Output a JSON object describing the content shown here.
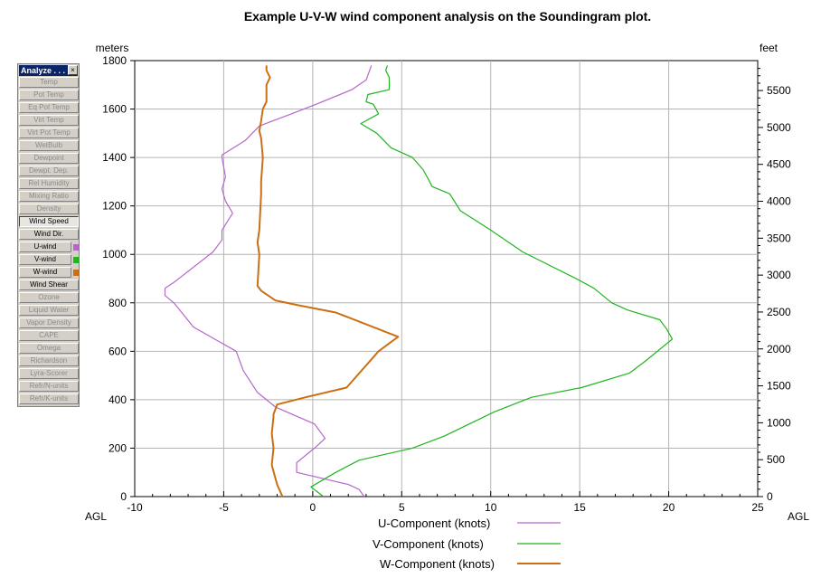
{
  "title": "Example U-V-W wind component analysis on the Soundingram plot.",
  "colors": {
    "u": "#b566cc",
    "v": "#1fb51f",
    "w": "#cc6f14",
    "grid": "#b4b4b4"
  },
  "palette": {
    "title": "Analyze . . .",
    "close": "×",
    "items": [
      {
        "label": "Temp",
        "state": "disabled"
      },
      {
        "label": "Pot Temp",
        "state": "disabled"
      },
      {
        "label": "Eq Pot Temp",
        "state": "disabled"
      },
      {
        "label": "Virt Temp",
        "state": "disabled"
      },
      {
        "label": "Virt Pot Temp",
        "state": "disabled"
      },
      {
        "label": "WetBulb",
        "state": "disabled"
      },
      {
        "label": "Dewpoint",
        "state": "disabled"
      },
      {
        "label": "Dewpt. Dep.",
        "state": "disabled"
      },
      {
        "label": "Rel Humidity",
        "state": "disabled"
      },
      {
        "label": "Mixing Ratio",
        "state": "disabled"
      },
      {
        "label": "Density",
        "state": "disabled"
      },
      {
        "label": "Wind Speed",
        "state": "pressed"
      },
      {
        "label": "Wind Dir.",
        "state": "active"
      },
      {
        "label": "U-wind",
        "state": "active",
        "swatch": "#b566cc"
      },
      {
        "label": "V-wind",
        "state": "active",
        "swatch": "#1fb51f"
      },
      {
        "label": "W-wind",
        "state": "active",
        "swatch": "#cc6f14"
      },
      {
        "label": "Wind Shear",
        "state": "active"
      },
      {
        "label": "Ozone",
        "state": "disabled"
      },
      {
        "label": "Liquid Water",
        "state": "disabled"
      },
      {
        "label": "Vapor Density",
        "state": "disabled"
      },
      {
        "label": "CAPE",
        "state": "disabled"
      },
      {
        "label": "Omega",
        "state": "disabled"
      },
      {
        "label": "Richardson",
        "state": "disabled"
      },
      {
        "label": "Lyra-Scorer",
        "state": "disabled"
      },
      {
        "label": "Refr/N-units",
        "state": "disabled"
      },
      {
        "label": "Refr/K-units",
        "state": "disabled"
      }
    ]
  },
  "chart_data": {
    "type": "line",
    "title": "Example U-V-W wind component analysis on the Soundingram plot.",
    "ylabel_left": "meters",
    "ylabel_right": "feet",
    "xlabel_left": "AGL",
    "xlabel_right": "AGL",
    "xlim": [
      -10,
      25
    ],
    "ylim": [
      0,
      1800
    ],
    "x_ticks": [
      "-10",
      "-5",
      "0",
      "5",
      "10",
      "15",
      "20",
      "25"
    ],
    "y_ticks_left": [
      "0",
      "200",
      "400",
      "600",
      "800",
      "1000",
      "1200",
      "1400",
      "1600",
      "1800"
    ],
    "y_ticks_right": [
      "0",
      "500",
      "1000",
      "1500",
      "2000",
      "2500",
      "3000",
      "3500",
      "4000",
      "4500",
      "5000",
      "5500"
    ],
    "grid": true,
    "legend_position": "bottom-center",
    "series": [
      {
        "name": "U-Component (knots)",
        "color": "#b566cc",
        "points": [
          [
            2.9,
            0
          ],
          [
            2.6,
            30
          ],
          [
            2.0,
            50
          ],
          [
            -0.9,
            100
          ],
          [
            -0.9,
            140
          ],
          [
            0.1,
            200
          ],
          [
            0.7,
            240
          ],
          [
            0.1,
            300
          ],
          [
            -2.1,
            370
          ],
          [
            -3.1,
            430
          ],
          [
            -3.9,
            520
          ],
          [
            -4.3,
            600
          ],
          [
            -6.7,
            700
          ],
          [
            -7.8,
            800
          ],
          [
            -8.3,
            830
          ],
          [
            -8.3,
            860
          ],
          [
            -7.7,
            890
          ],
          [
            -5.6,
            1010
          ],
          [
            -5.1,
            1060
          ],
          [
            -5.1,
            1100
          ],
          [
            -4.5,
            1170
          ],
          [
            -4.9,
            1220
          ],
          [
            -5.1,
            1270
          ],
          [
            -4.9,
            1320
          ],
          [
            -5.1,
            1400
          ],
          [
            -5.1,
            1410
          ],
          [
            -3.8,
            1470
          ],
          [
            -3.0,
            1530
          ],
          [
            -1.2,
            1580
          ],
          [
            0.2,
            1620
          ],
          [
            2.2,
            1680
          ],
          [
            3.0,
            1720
          ],
          [
            3.2,
            1760
          ],
          [
            3.3,
            1780
          ]
        ]
      },
      {
        "name": "V-Component (knots)",
        "color": "#1fb51f",
        "points": [
          [
            0.6,
            0
          ],
          [
            -0.1,
            40
          ],
          [
            1.3,
            100
          ],
          [
            2.6,
            150
          ],
          [
            5.6,
            200
          ],
          [
            7.4,
            250
          ],
          [
            10.2,
            350
          ],
          [
            12.3,
            410
          ],
          [
            15.1,
            450
          ],
          [
            17.8,
            510
          ],
          [
            18.7,
            560
          ],
          [
            20.2,
            650
          ],
          [
            19.9,
            690
          ],
          [
            19.5,
            730
          ],
          [
            17.7,
            770
          ],
          [
            16.8,
            800
          ],
          [
            15.8,
            860
          ],
          [
            14.8,
            900
          ],
          [
            11.8,
            1010
          ],
          [
            10.0,
            1100
          ],
          [
            8.3,
            1180
          ],
          [
            7.7,
            1250
          ],
          [
            6.7,
            1280
          ],
          [
            6.5,
            1310
          ],
          [
            6.2,
            1350
          ],
          [
            5.6,
            1400
          ],
          [
            4.4,
            1440
          ],
          [
            3.6,
            1500
          ],
          [
            2.7,
            1540
          ],
          [
            3.7,
            1580
          ],
          [
            3.4,
            1620
          ],
          [
            3.0,
            1630
          ],
          [
            3.1,
            1660
          ],
          [
            4.3,
            1680
          ],
          [
            4.3,
            1730
          ],
          [
            4.1,
            1760
          ],
          [
            4.2,
            1780
          ]
        ]
      },
      {
        "name": "W-Component (knots)",
        "color": "#cc6f14",
        "points": [
          [
            -1.7,
            0
          ],
          [
            -2.0,
            50
          ],
          [
            -2.3,
            130
          ],
          [
            -2.2,
            200
          ],
          [
            -2.3,
            260
          ],
          [
            -2.2,
            330
          ],
          [
            -2.2,
            340
          ],
          [
            -2.0,
            380
          ],
          [
            -0.4,
            410
          ],
          [
            1.9,
            450
          ],
          [
            3.7,
            600
          ],
          [
            4.8,
            660
          ],
          [
            1.3,
            760
          ],
          [
            -0.8,
            790
          ],
          [
            -2.1,
            810
          ],
          [
            -2.9,
            850
          ],
          [
            -3.1,
            870
          ],
          [
            -3.0,
            1000
          ],
          [
            -3.1,
            1050
          ],
          [
            -3.0,
            1100
          ],
          [
            -2.9,
            1250
          ],
          [
            -2.9,
            1300
          ],
          [
            -2.8,
            1400
          ],
          [
            -2.9,
            1480
          ],
          [
            -3.0,
            1510
          ],
          [
            -2.9,
            1550
          ],
          [
            -2.8,
            1600
          ],
          [
            -2.6,
            1630
          ],
          [
            -2.6,
            1700
          ],
          [
            -2.4,
            1730
          ],
          [
            -2.6,
            1760
          ],
          [
            -2.6,
            1780
          ]
        ]
      }
    ]
  }
}
